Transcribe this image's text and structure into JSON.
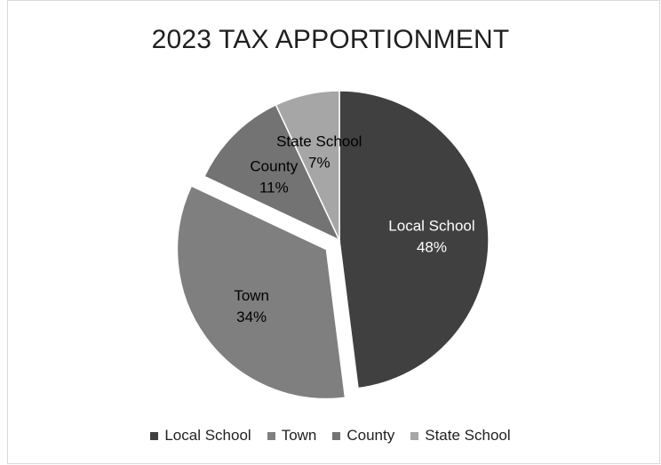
{
  "chart_data": {
    "type": "pie",
    "title": "2023 TAX APPORTIONMENT",
    "categories": [
      "Local School",
      "Town",
      "County",
      "State School"
    ],
    "values": [
      48,
      34,
      11,
      7
    ],
    "labels": [
      "48%",
      "34%",
      "11%",
      "7%"
    ],
    "colors": [
      "#404040",
      "#7f7f7f",
      "#737373",
      "#a6a6a6"
    ],
    "label_colors": [
      "#ffffff",
      "#000000",
      "#000000",
      "#000000"
    ],
    "exploded": [
      false,
      true,
      false,
      false
    ],
    "legend_position": "bottom",
    "start_angle_deg": 0,
    "direction": "clockwise"
  }
}
